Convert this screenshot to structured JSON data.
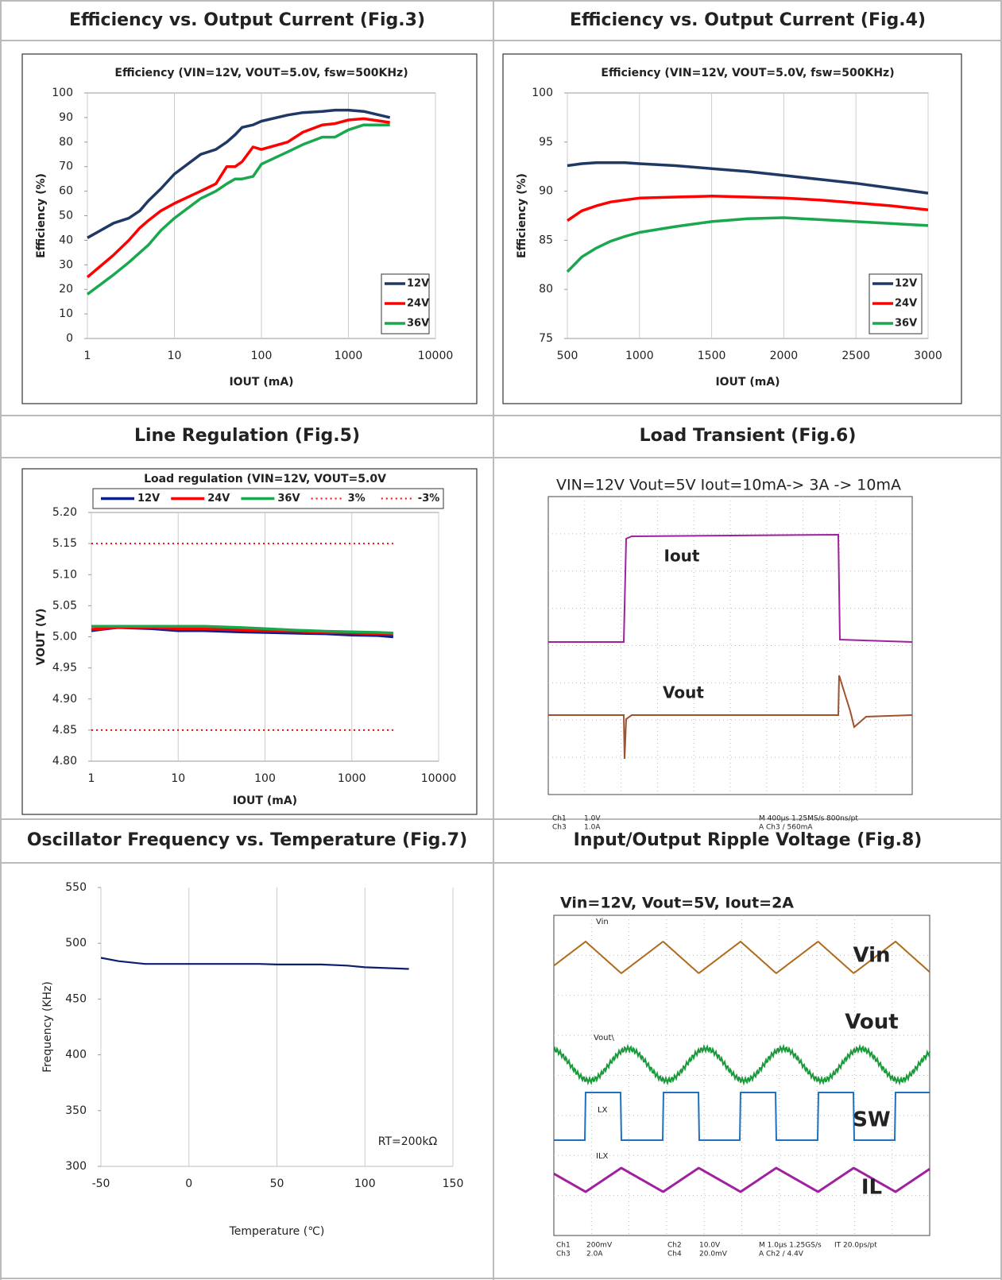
{
  "panels": [
    "Efficiency vs. Output Current (Fig.3)",
    "Efficiency vs. Output Current (Fig.4)",
    "Line Regulation (Fig.5)",
    "Load Transient (Fig.6)",
    "Oscillator Frequency vs. Temperature (Fig.7)",
    "Input/Output Ripple Voltage (Fig.8)"
  ],
  "chart_data": [
    {
      "type": "line",
      "title": "Efficiency (VIN=12V, VOUT=5.0V, fsw=500KHz)",
      "xlabel": "IOUT (mA)",
      "ylabel": "Efficiency (%)",
      "xscale": "log",
      "grid": "x",
      "legend": "lower right",
      "xlim": [
        1,
        10000
      ],
      "xticks": [
        1,
        10,
        100,
        1000,
        10000
      ],
      "ylim": [
        0,
        100
      ],
      "yticks": [
        0,
        10,
        20,
        30,
        40,
        50,
        60,
        70,
        80,
        90,
        100
      ],
      "x": [
        1,
        2,
        3,
        4,
        5,
        7,
        10,
        20,
        30,
        40,
        50,
        60,
        80,
        100,
        200,
        300,
        500,
        700,
        1000,
        1500,
        3000
      ],
      "series": [
        {
          "name": "12V",
          "color": "#1f3864",
          "values": [
            41,
            47,
            49,
            52,
            56,
            61,
            67,
            75,
            77,
            80,
            83,
            86,
            87,
            88.5,
            91,
            92,
            92.5,
            93,
            93,
            92.5,
            90
          ]
        },
        {
          "name": "24V",
          "color": "#ff0000",
          "values": [
            25,
            34,
            40,
            45,
            48,
            52,
            55,
            60,
            63,
            70,
            70,
            72,
            78,
            77,
            80,
            84,
            87,
            87.5,
            89,
            89.5,
            88
          ]
        },
        {
          "name": "36V",
          "color": "#1aa84f",
          "values": [
            18,
            26,
            31,
            35,
            38,
            44,
            49,
            57,
            60,
            63,
            65,
            65,
            66,
            71,
            76,
            79,
            82,
            82,
            85,
            87,
            87
          ]
        }
      ]
    },
    {
      "type": "line",
      "title": "Efficiency (VIN=12V, VOUT=5.0V, fsw=500KHz)",
      "xlabel": "IOUT (mA)",
      "ylabel": "Efficiency (%)",
      "xscale": "linear",
      "grid": "x",
      "legend": "lower right",
      "xlim": [
        500,
        3000
      ],
      "xticks": [
        500,
        1000,
        1500,
        2000,
        2500,
        3000
      ],
      "ylim": [
        75,
        100
      ],
      "yticks": [
        75,
        80,
        85,
        90,
        95,
        100
      ],
      "x": [
        500,
        600,
        700,
        800,
        900,
        1000,
        1250,
        1500,
        1750,
        2000,
        2250,
        2500,
        2750,
        3000
      ],
      "series": [
        {
          "name": "12V",
          "color": "#1f3864",
          "values": [
            92.6,
            92.8,
            92.9,
            92.9,
            92.9,
            92.8,
            92.6,
            92.3,
            92,
            91.6,
            91.2,
            90.8,
            90.3,
            89.8
          ]
        },
        {
          "name": "24V",
          "color": "#ff0000",
          "values": [
            87,
            88,
            88.5,
            88.9,
            89.1,
            89.3,
            89.4,
            89.5,
            89.4,
            89.3,
            89.1,
            88.8,
            88.5,
            88.1
          ]
        },
        {
          "name": "36V",
          "color": "#1aa84f",
          "values": [
            81.8,
            83.3,
            84.2,
            84.9,
            85.4,
            85.8,
            86.4,
            86.9,
            87.2,
            87.3,
            87.1,
            86.9,
            86.7,
            86.5
          ]
        }
      ]
    },
    {
      "type": "line",
      "title": "Load regulation (VIN=12V, VOUT=5.0V",
      "xlabel": "IOUT (mA)",
      "ylabel": "VOUT (V)",
      "xscale": "log",
      "grid": "x",
      "legend": "top",
      "xlim": [
        1,
        10000
      ],
      "xticks": [
        1,
        10,
        100,
        1000,
        10000
      ],
      "ylim": [
        4.8,
        5.2
      ],
      "yticks": [
        {
          "value": 4.8,
          "label": "4.80"
        },
        4.85,
        {
          "value": 4.9,
          "label": "4.90"
        },
        4.95,
        {
          "value": 5,
          "label": "5.00"
        },
        5.05,
        {
          "value": 5.1,
          "label": "5.10"
        },
        5.15,
        {
          "value": 5.2,
          "label": "5.20"
        }
      ],
      "x": [
        1,
        2,
        5,
        10,
        20,
        50,
        100,
        200,
        500,
        1000,
        2000,
        3000
      ],
      "series": [
        {
          "name": "12V",
          "color": "#0c1f8c",
          "values": [
            5.01,
            5.015,
            5.013,
            5.01,
            5.01,
            5.008,
            5.007,
            5.006,
            5.005,
            5.003,
            5.002,
            5.0
          ]
        },
        {
          "name": "24V",
          "color": "#ff0000",
          "values": [
            5.012,
            5.015,
            5.015,
            5.013,
            5.013,
            5.011,
            5.01,
            5.009,
            5.007,
            5.006,
            5.005,
            5.004
          ]
        },
        {
          "name": "36V",
          "color": "#1aa84f",
          "values": [
            5.017,
            5.017,
            5.017,
            5.017,
            5.017,
            5.015,
            5.013,
            5.011,
            5.009,
            5.008,
            5.007,
            5.006
          ]
        },
        {
          "name": "3%",
          "color": "#ff0000",
          "style": "dotted",
          "values": [
            5.15,
            5.15,
            5.15,
            5.15,
            5.15,
            5.15,
            5.15,
            5.15,
            5.15,
            5.15,
            5.15,
            5.15
          ]
        },
        {
          "name": "-3%",
          "color": "#ff0000",
          "style": "dotted",
          "values": [
            4.85,
            4.85,
            4.85,
            4.85,
            4.85,
            4.85,
            4.85,
            4.85,
            4.85,
            4.85,
            4.85,
            4.85
          ]
        }
      ]
    },
    {
      "type": "line",
      "xlabel": "Temperature (℃)",
      "ylabel": "Frequency (KHz)",
      "annotation": "RT=200kΩ",
      "xscale": "linear",
      "grid": "x",
      "xlim": [
        -50,
        150
      ],
      "xticks": [
        -50,
        0,
        50,
        100,
        150
      ],
      "ylim": [
        300,
        550
      ],
      "yticks": [
        300,
        350,
        400,
        450,
        500,
        550
      ],
      "x": [
        -50,
        -40,
        -25,
        0,
        25,
        40,
        50,
        75,
        90,
        100,
        125
      ],
      "series": [
        {
          "color": "#0c1f6c",
          "values": [
            487,
            484,
            481.5,
            481.5,
            481.5,
            481.5,
            481,
            481,
            480,
            478.5,
            477
          ]
        }
      ]
    }
  ],
  "scopes": [
    {
      "title": "VIN=12V Vout=5V  Iout=10mA-> 3A -> 10mA",
      "traces": [
        "Iout",
        "Vout"
      ],
      "readouts": [
        "Ch1",
        "1.0V",
        "Ch3",
        "1.0A",
        "M 400µs 1.25MS/s",
        "800ns/pt",
        "A Ch3 ∕ 560mA"
      ]
    },
    {
      "title": "Vin=12V, Vout=5V, Iout=2A",
      "traces": [
        "Vin",
        "Vout",
        "SW",
        "IL"
      ],
      "screen_labels": [
        "Vin",
        "Vout\\",
        "LX",
        "ILX"
      ],
      "readouts": [
        "Ch1",
        "200mV",
        "Ch3",
        "2.0A",
        "Ch2",
        "10.0V",
        "Ch4",
        "20.0mV",
        "M 1.0µs 1.25GS/s",
        "IT 20.0ps/pt",
        "A Ch2 ∕ 4.4V"
      ]
    }
  ]
}
